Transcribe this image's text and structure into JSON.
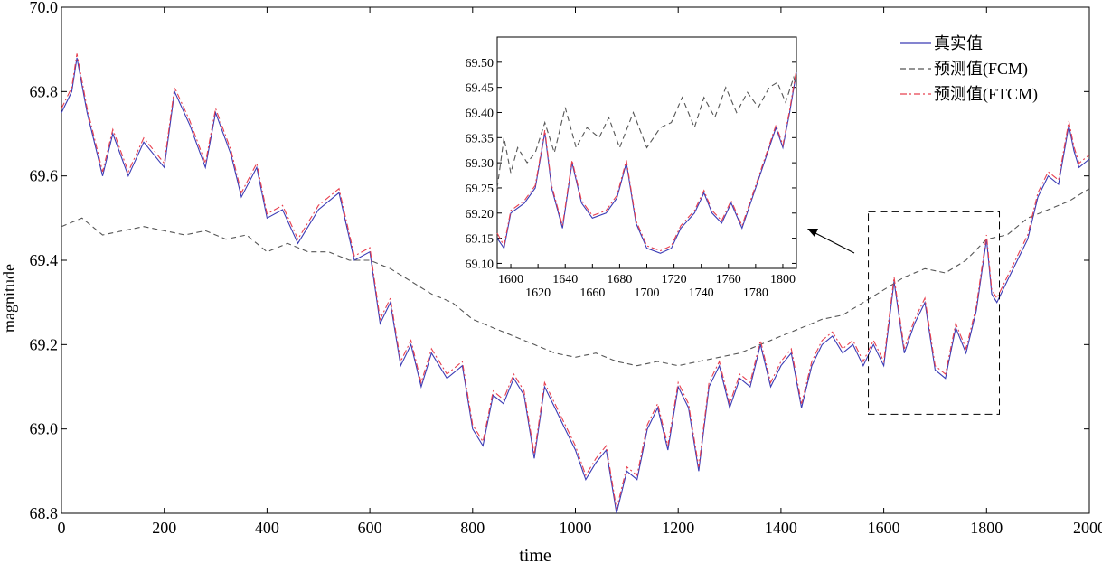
{
  "chart_data": {
    "type": "line",
    "xlabel": "time",
    "ylabel": "magnitude",
    "xlim": [
      0,
      2000
    ],
    "ylim": [
      68.8,
      70.0
    ],
    "x_ticks": [
      "0",
      "200",
      "400",
      "600",
      "800",
      "1000",
      "1200",
      "1400",
      "1600",
      "1800",
      "2000"
    ],
    "y_ticks": [
      "68.8",
      "69.0",
      "69.2",
      "69.4",
      "69.6",
      "69.8",
      "70.0"
    ],
    "legend_position": "top-right",
    "series": [
      {
        "name": "真实值",
        "color": "#3b3bb5",
        "style": "solid",
        "x": [
          0,
          20,
          30,
          50,
          80,
          100,
          130,
          160,
          200,
          220,
          250,
          280,
          300,
          330,
          350,
          380,
          400,
          430,
          460,
          500,
          540,
          570,
          600,
          620,
          640,
          660,
          680,
          700,
          720,
          750,
          780,
          800,
          820,
          840,
          860,
          880,
          900,
          920,
          940,
          960,
          980,
          1000,
          1020,
          1040,
          1060,
          1080,
          1100,
          1120,
          1140,
          1160,
          1180,
          1200,
          1220,
          1240,
          1260,
          1280,
          1300,
          1320,
          1340,
          1360,
          1380,
          1400,
          1420,
          1440,
          1460,
          1480,
          1500,
          1520,
          1540,
          1560,
          1580,
          1600,
          1620,
          1640,
          1660,
          1680,
          1700,
          1720,
          1740,
          1760,
          1780,
          1800,
          1810,
          1820,
          1840,
          1860,
          1880,
          1900,
          1920,
          1940,
          1960,
          1970,
          1980,
          2000
        ],
        "y": [
          69.75,
          69.8,
          69.88,
          69.75,
          69.6,
          69.7,
          69.6,
          69.68,
          69.62,
          69.8,
          69.72,
          69.62,
          69.75,
          69.65,
          69.55,
          69.62,
          69.5,
          69.52,
          69.44,
          69.52,
          69.56,
          69.4,
          69.42,
          69.25,
          69.3,
          69.15,
          69.2,
          69.1,
          69.18,
          69.12,
          69.15,
          69.0,
          68.96,
          69.08,
          69.06,
          69.12,
          69.08,
          68.93,
          69.1,
          69.05,
          69.0,
          68.95,
          68.88,
          68.92,
          68.95,
          68.8,
          68.9,
          68.88,
          69.0,
          69.05,
          68.95,
          69.1,
          69.05,
          68.9,
          69.1,
          69.15,
          69.05,
          69.12,
          69.1,
          69.2,
          69.1,
          69.15,
          69.18,
          69.05,
          69.15,
          69.2,
          69.22,
          69.18,
          69.2,
          69.15,
          69.2,
          69.15,
          69.35,
          69.18,
          69.25,
          69.3,
          69.14,
          69.12,
          69.24,
          69.18,
          69.28,
          69.45,
          69.32,
          69.3,
          69.35,
          69.4,
          69.45,
          69.55,
          69.6,
          69.58,
          69.72,
          69.66,
          69.62,
          69.64
        ]
      },
      {
        "name": "预测值(FCM)",
        "color": "#555555",
        "style": "dashed",
        "x": [
          0,
          40,
          80,
          120,
          160,
          200,
          240,
          280,
          320,
          360,
          400,
          440,
          480,
          520,
          560,
          600,
          640,
          680,
          720,
          760,
          800,
          840,
          880,
          920,
          960,
          1000,
          1040,
          1080,
          1120,
          1160,
          1200,
          1240,
          1280,
          1320,
          1360,
          1400,
          1440,
          1480,
          1520,
          1560,
          1600,
          1640,
          1680,
          1720,
          1760,
          1800,
          1840,
          1880,
          1920,
          1960,
          2000
        ],
        "y": [
          69.48,
          69.5,
          69.46,
          69.47,
          69.48,
          69.47,
          69.46,
          69.47,
          69.45,
          69.46,
          69.42,
          69.44,
          69.42,
          69.42,
          69.4,
          69.4,
          69.38,
          69.35,
          69.32,
          69.3,
          69.26,
          69.24,
          69.22,
          69.2,
          69.18,
          69.17,
          69.18,
          69.16,
          69.15,
          69.16,
          69.15,
          69.16,
          69.17,
          69.18,
          69.2,
          69.22,
          69.24,
          69.26,
          69.27,
          69.3,
          69.33,
          69.36,
          69.38,
          69.37,
          69.4,
          69.45,
          69.46,
          69.5,
          69.52,
          69.54,
          69.57
        ]
      },
      {
        "name": "预测值(FTCM)",
        "color": "#e8404f",
        "style": "dashdot",
        "x": [
          0,
          20,
          30,
          50,
          80,
          100,
          130,
          160,
          200,
          220,
          250,
          280,
          300,
          330,
          350,
          380,
          400,
          430,
          460,
          500,
          540,
          570,
          600,
          620,
          640,
          660,
          680,
          700,
          720,
          750,
          780,
          800,
          820,
          840,
          860,
          880,
          900,
          920,
          940,
          960,
          980,
          1000,
          1020,
          1040,
          1060,
          1080,
          1100,
          1120,
          1140,
          1160,
          1180,
          1200,
          1220,
          1240,
          1260,
          1280,
          1300,
          1320,
          1340,
          1360,
          1380,
          1400,
          1420,
          1440,
          1460,
          1480,
          1500,
          1520,
          1540,
          1560,
          1580,
          1600,
          1620,
          1640,
          1660,
          1680,
          1700,
          1720,
          1740,
          1760,
          1780,
          1800,
          1810,
          1820,
          1840,
          1860,
          1880,
          1900,
          1920,
          1940,
          1960,
          1970,
          1980,
          2000
        ],
        "y": [
          69.76,
          69.81,
          69.89,
          69.76,
          69.61,
          69.71,
          69.61,
          69.69,
          69.63,
          69.81,
          69.73,
          69.63,
          69.76,
          69.66,
          69.56,
          69.63,
          69.51,
          69.53,
          69.45,
          69.53,
          69.57,
          69.41,
          69.43,
          69.26,
          69.31,
          69.16,
          69.21,
          69.11,
          69.19,
          69.13,
          69.16,
          69.01,
          68.97,
          69.09,
          69.07,
          69.13,
          69.09,
          68.94,
          69.11,
          69.06,
          69.01,
          68.96,
          68.89,
          68.93,
          68.96,
          68.81,
          68.91,
          68.89,
          69.01,
          69.06,
          68.96,
          69.11,
          69.06,
          68.91,
          69.11,
          69.16,
          69.06,
          69.13,
          69.11,
          69.21,
          69.11,
          69.16,
          69.19,
          69.06,
          69.16,
          69.21,
          69.23,
          69.19,
          69.21,
          69.16,
          69.21,
          69.16,
          69.36,
          69.19,
          69.26,
          69.31,
          69.15,
          69.13,
          69.25,
          69.19,
          69.29,
          69.46,
          69.33,
          69.31,
          69.36,
          69.41,
          69.46,
          69.56,
          69.61,
          69.59,
          69.73,
          69.67,
          69.63,
          69.65
        ]
      }
    ],
    "zoom_region": {
      "xlim": [
        1570,
        1825
      ],
      "ylim": [
        69.035,
        69.515
      ]
    },
    "inset": {
      "xlim": [
        1590,
        1810
      ],
      "ylim": [
        69.09,
        69.55
      ],
      "x_ticks_upper": [
        "1600",
        "1640",
        "1680",
        "1720",
        "1760",
        "1800"
      ],
      "x_ticks_lower": [
        "1620",
        "1660",
        "1700",
        "1740",
        "1780"
      ],
      "y_ticks": [
        "69.10",
        "69.15",
        "69.20",
        "69.25",
        "69.30",
        "69.35",
        "69.40",
        "69.45",
        "69.50"
      ],
      "series": [
        {
          "color": "#3b3bb5",
          "style": "solid",
          "x": [
            1590,
            1595,
            1600,
            1610,
            1618,
            1625,
            1630,
            1638,
            1645,
            1652,
            1660,
            1670,
            1678,
            1685,
            1692,
            1700,
            1710,
            1718,
            1725,
            1735,
            1742,
            1748,
            1755,
            1762,
            1770,
            1780,
            1790,
            1795,
            1800,
            1805,
            1810
          ],
          "y": [
            69.15,
            69.13,
            69.2,
            69.22,
            69.25,
            69.36,
            69.25,
            69.17,
            69.3,
            69.22,
            69.19,
            69.2,
            69.23,
            69.3,
            69.18,
            69.13,
            69.12,
            69.13,
            69.17,
            69.2,
            69.24,
            69.2,
            69.18,
            69.22,
            69.17,
            69.25,
            69.33,
            69.37,
            69.33,
            69.4,
            69.48
          ]
        },
        {
          "color": "#555555",
          "style": "dashed",
          "x": [
            1590,
            1595,
            1600,
            1605,
            1612,
            1618,
            1625,
            1632,
            1640,
            1648,
            1656,
            1665,
            1672,
            1680,
            1690,
            1700,
            1710,
            1718,
            1726,
            1735,
            1742,
            1750,
            1758,
            1766,
            1774,
            1782,
            1790,
            1796,
            1802,
            1808,
            1810
          ],
          "y": [
            69.25,
            69.35,
            69.28,
            69.33,
            69.3,
            69.32,
            69.38,
            69.32,
            69.41,
            69.33,
            69.37,
            69.35,
            69.39,
            69.33,
            69.4,
            69.33,
            69.37,
            69.38,
            69.43,
            69.37,
            69.43,
            69.39,
            69.45,
            69.4,
            69.44,
            69.41,
            69.45,
            69.46,
            69.42,
            69.47,
            69.45
          ]
        },
        {
          "color": "#e8404f",
          "style": "dashdot",
          "x": [
            1590,
            1595,
            1600,
            1610,
            1618,
            1625,
            1630,
            1638,
            1645,
            1652,
            1660,
            1670,
            1678,
            1685,
            1692,
            1700,
            1710,
            1718,
            1725,
            1735,
            1742,
            1748,
            1755,
            1762,
            1770,
            1780,
            1790,
            1795,
            1800,
            1805,
            1810
          ],
          "y": [
            69.16,
            69.135,
            69.205,
            69.225,
            69.255,
            69.365,
            69.255,
            69.175,
            69.305,
            69.225,
            69.195,
            69.205,
            69.235,
            69.305,
            69.185,
            69.135,
            69.125,
            69.135,
            69.175,
            69.205,
            69.245,
            69.205,
            69.185,
            69.225,
            69.175,
            69.255,
            69.335,
            69.375,
            69.335,
            69.405,
            69.485
          ]
        }
      ]
    }
  }
}
